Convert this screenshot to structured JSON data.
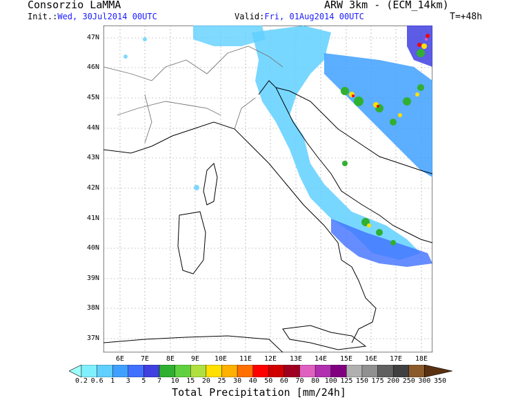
{
  "header": {
    "provider": "Consorzio LaMMA",
    "model": "ARW 3km - (ECM_14km)",
    "init_label": "Init.:",
    "init_value": "Wed, 30Jul2014 00UTC",
    "valid_label": "Valid:",
    "valid_value": "Fri, 01Aug2014 00UTC",
    "lead_time": "T=+48h"
  },
  "map": {
    "lat_labels": [
      "47N",
      "46N",
      "45N",
      "44N",
      "43N",
      "42N",
      "41N",
      "40N",
      "39N",
      "38N",
      "37N"
    ],
    "lon_labels": [
      "6E",
      "7E",
      "8E",
      "9E",
      "10E",
      "11E",
      "12E",
      "13E",
      "14E",
      "15E",
      "16E",
      "17E",
      "18E"
    ]
  },
  "colorbar": {
    "title": "Total Precipitation [mm/24h]",
    "labels": [
      "0.2",
      "0.6",
      "1",
      "3",
      "5",
      "7",
      "10",
      "15",
      "20",
      "25",
      "30",
      "40",
      "50",
      "60",
      "70",
      "80",
      "100",
      "125",
      "150",
      "175",
      "200",
      "250",
      "300",
      "350"
    ],
    "colors": [
      "#a0fffa",
      "#80f0ff",
      "#60d0ff",
      "#40a0ff",
      "#4070ff",
      "#4040e0",
      "#30b030",
      "#60d040",
      "#b0e040",
      "#ffe000",
      "#ffb000",
      "#ff7000",
      "#ff0000",
      "#d00000",
      "#a00020",
      "#e060c0",
      "#b030b0",
      "#800080",
      "#b0b0b0",
      "#909090",
      "#606060",
      "#404040",
      "#8b5a2b",
      "#5a3010"
    ]
  }
}
